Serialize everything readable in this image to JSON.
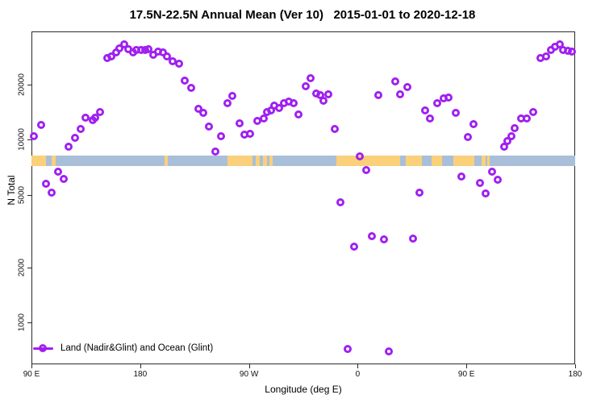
{
  "title": "17.5N-22.5N Annual Mean (Ver 10)   2015-01-01 to 2020-12-18",
  "x_axis": {
    "label": "Longitude (deg E)",
    "ticks": [
      {
        "deg": 90,
        "label": "90 E"
      },
      {
        "deg": 180,
        "label": "180"
      },
      {
        "deg": 270,
        "label": "90 W"
      },
      {
        "deg": 360,
        "label": "0"
      },
      {
        "deg": 450,
        "label": "90 E"
      },
      {
        "deg": 540,
        "label": "180"
      }
    ]
  },
  "y_axis": {
    "label": "N Total",
    "ticks": [
      {
        "value": 1000,
        "label": "1000"
      },
      {
        "value": 2000,
        "label": "2000"
      },
      {
        "value": 5000,
        "label": "5000"
      },
      {
        "value": 10000,
        "label": "10000"
      },
      {
        "value": 20000,
        "label": "20000"
      }
    ]
  },
  "legend": {
    "label": "Land (Nadir&Glint) and Ocean (Glint)"
  },
  "colors": {
    "marker": "#A020F0",
    "band_land": "#FAD07A",
    "band_ocean": "#A9BFD9",
    "axis": "#2B2B2B",
    "text": "#000000",
    "background": "#FFFFFF"
  },
  "chart_data": {
    "type": "scatter",
    "log_y": true,
    "xlim": [
      90,
      540
    ],
    "ylim": [
      590,
      39130
    ],
    "x_axis_note": "longitude wraps: 90E to 180 to 90W to 0 to 90E to 180",
    "band": {
      "description": "17.5N-22.5N latitude strip map (land=tan, ocean=blue)",
      "value_range": [
        7280,
        8260
      ],
      "ocean_range": [
        90,
        540
      ],
      "land_ranges": [
        [
          90,
          102
        ],
        [
          106.5,
          110
        ],
        [
          200,
          203
        ],
        [
          252,
          273
        ],
        [
          275.5,
          279
        ],
        [
          281.5,
          285
        ],
        [
          287,
          289.5
        ],
        [
          342.5,
          395
        ],
        [
          400,
          413
        ],
        [
          421,
          430
        ],
        [
          439,
          456.5
        ],
        [
          462.5,
          466
        ],
        [
          467.5,
          469.5
        ]
      ]
    },
    "points": [
      [
        92,
        10400
      ],
      [
        98,
        12100
      ],
      [
        102,
        5720
      ],
      [
        107,
        5130
      ],
      [
        112,
        6680
      ],
      [
        117,
        6080
      ],
      [
        121,
        9130
      ],
      [
        126,
        10200
      ],
      [
        131,
        11500
      ],
      [
        135,
        13200
      ],
      [
        141,
        12800
      ],
      [
        143,
        13200
      ],
      [
        147,
        14200
      ],
      [
        153,
        27900
      ],
      [
        156,
        28600
      ],
      [
        160,
        30100
      ],
      [
        163,
        31700
      ],
      [
        167,
        33400
      ],
      [
        170,
        31200
      ],
      [
        174,
        30100
      ],
      [
        177,
        30900
      ],
      [
        181,
        31100
      ],
      [
        184,
        30900
      ],
      [
        187,
        31400
      ],
      [
        191,
        29100
      ],
      [
        195,
        30400
      ],
      [
        199,
        29900
      ],
      [
        202,
        28700
      ],
      [
        207,
        26800
      ],
      [
        212,
        26100
      ],
      [
        217,
        21100
      ],
      [
        222,
        19200
      ],
      [
        228,
        14700
      ],
      [
        232,
        14100
      ],
      [
        237,
        11800
      ],
      [
        242,
        8590
      ],
      [
        247,
        10500
      ],
      [
        252,
        15800
      ],
      [
        256,
        17400
      ],
      [
        262,
        12300
      ],
      [
        266,
        10700
      ],
      [
        271,
        10800
      ],
      [
        277,
        12700
      ],
      [
        282,
        13000
      ],
      [
        285,
        14200
      ],
      [
        288,
        14500
      ],
      [
        291,
        15300
      ],
      [
        295,
        14900
      ],
      [
        299,
        15800
      ],
      [
        303,
        16100
      ],
      [
        307,
        15800
      ],
      [
        311,
        13700
      ],
      [
        317,
        19700
      ],
      [
        321,
        21800
      ],
      [
        326,
        17900
      ],
      [
        329,
        17500
      ],
      [
        332,
        16400
      ],
      [
        336,
        17800
      ],
      [
        341,
        11500
      ],
      [
        346,
        4560
      ],
      [
        352,
        717
      ],
      [
        357,
        2610
      ],
      [
        362,
        8100
      ],
      [
        367,
        6820
      ],
      [
        372,
        2970
      ],
      [
        377,
        17600
      ],
      [
        382,
        2860
      ],
      [
        386,
        694
      ],
      [
        391,
        20800
      ],
      [
        395,
        17800
      ],
      [
        401,
        19400
      ],
      [
        406,
        2880
      ],
      [
        411,
        5110
      ],
      [
        416,
        14500
      ],
      [
        420,
        13100
      ],
      [
        426,
        15900
      ],
      [
        431,
        16800
      ],
      [
        435,
        17000
      ],
      [
        441,
        14000
      ],
      [
        446,
        6290
      ],
      [
        451,
        10300
      ],
      [
        456,
        12200
      ],
      [
        461,
        5800
      ],
      [
        466,
        5080
      ],
      [
        471,
        6660
      ],
      [
        476,
        6020
      ],
      [
        481,
        9130
      ],
      [
        484,
        9860
      ],
      [
        487,
        10500
      ],
      [
        490,
        11600
      ],
      [
        495,
        13000
      ],
      [
        500,
        13000
      ],
      [
        505,
        14200
      ],
      [
        511,
        28000
      ],
      [
        516,
        28600
      ],
      [
        520,
        30900
      ],
      [
        523,
        32300
      ],
      [
        527,
        33400
      ],
      [
        530,
        31000
      ],
      [
        534,
        30700
      ],
      [
        537,
        30400
      ]
    ]
  }
}
